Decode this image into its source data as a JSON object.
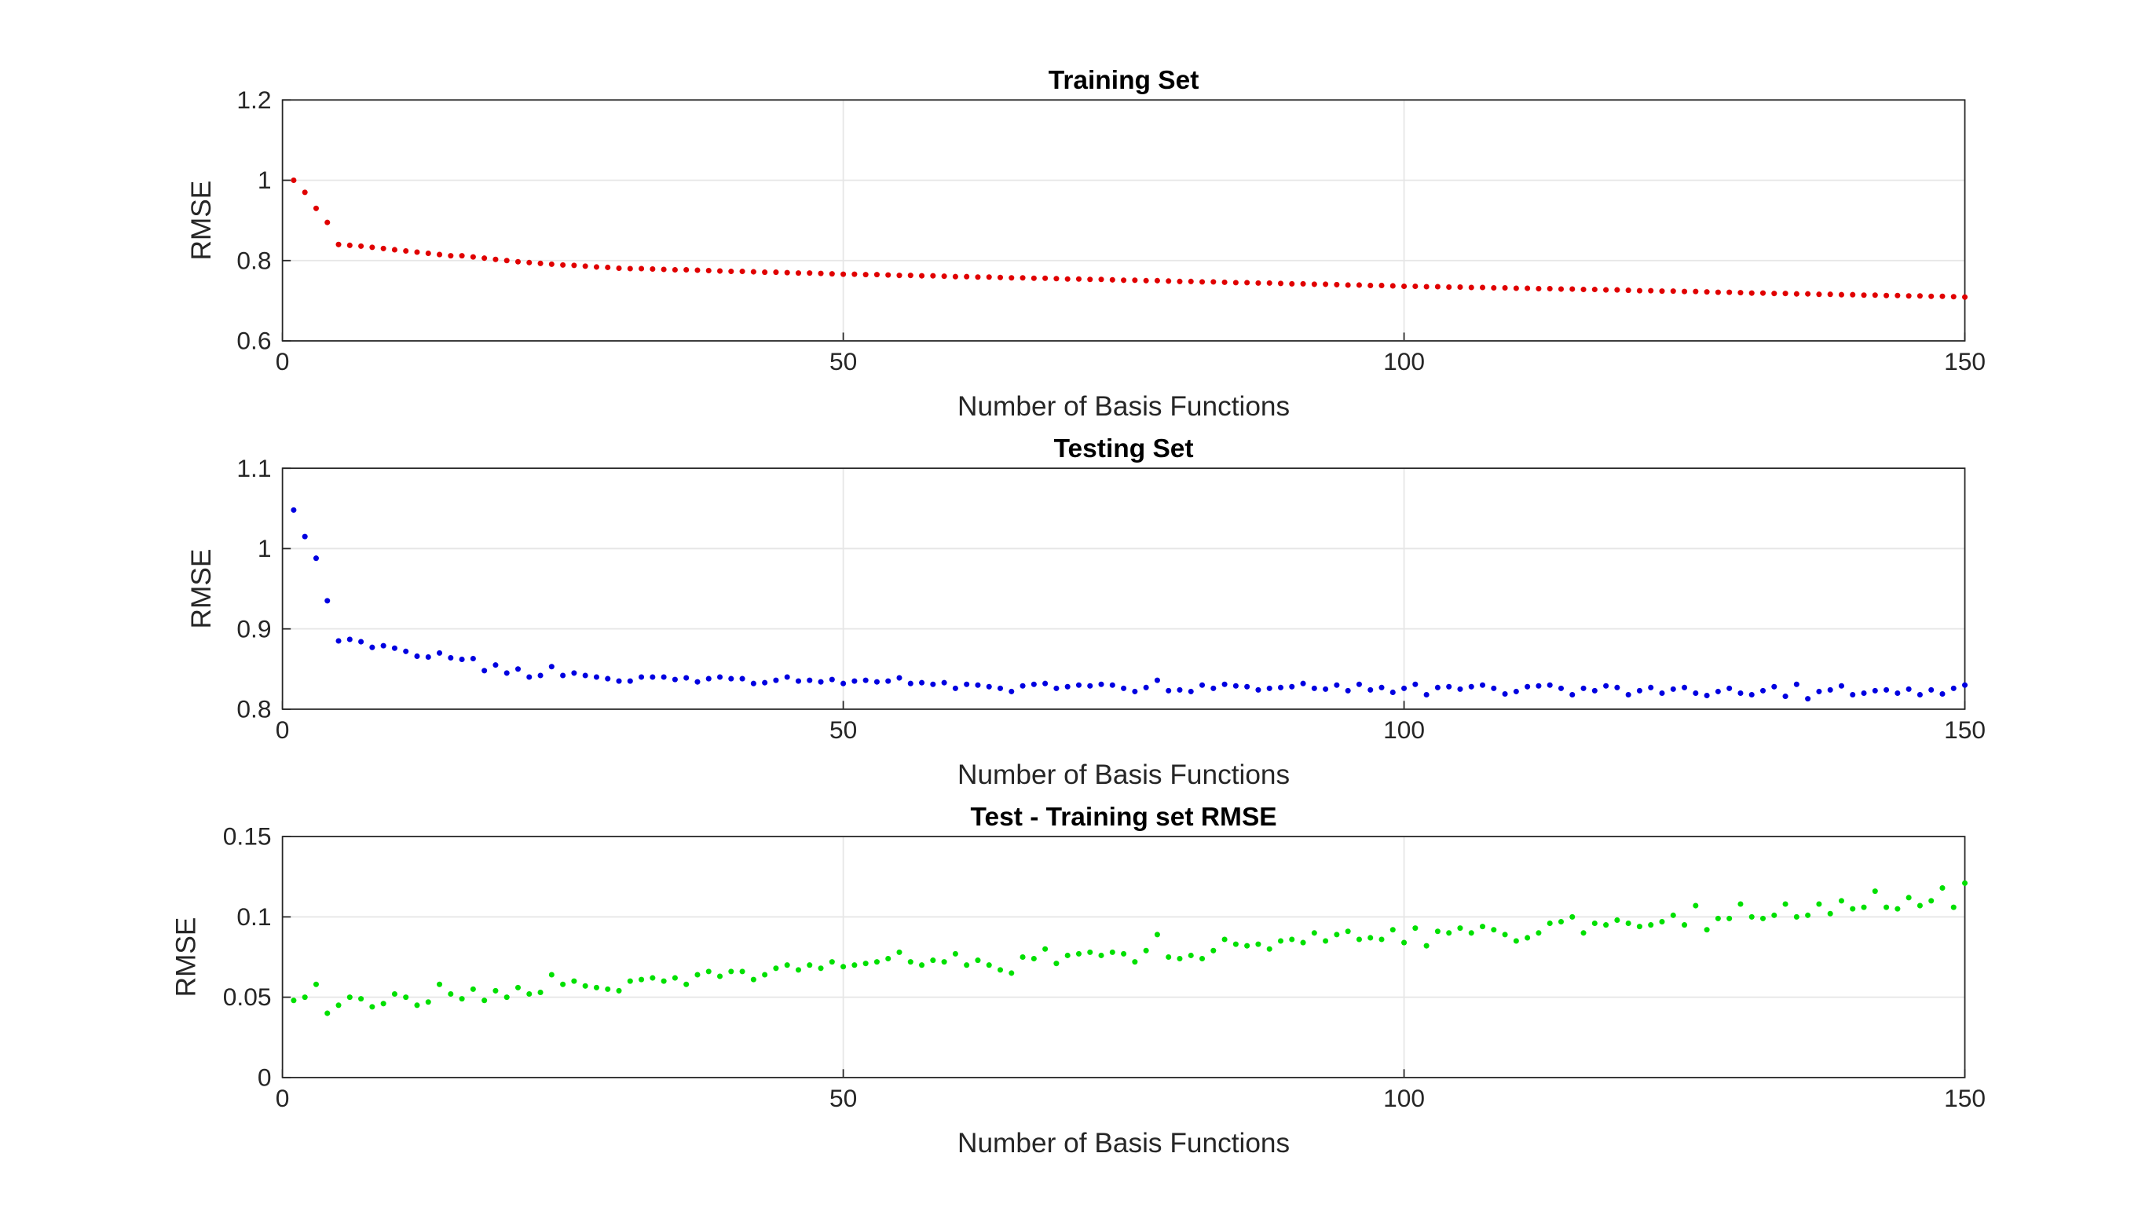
{
  "chart_data": [
    {
      "type": "scatter",
      "title": "Training Set",
      "xlabel": "Number of Basis Functions",
      "ylabel": "RMSE",
      "color": "#e00000",
      "grid": true,
      "xlim": [
        0,
        150
      ],
      "xticks": [
        0,
        50,
        100,
        150
      ],
      "ylim": [
        0.6,
        1.2
      ],
      "yticks": [
        0.6,
        0.8,
        1,
        1.2
      ],
      "x": [
        1,
        2,
        3,
        4,
        5,
        6,
        7,
        8,
        9,
        10,
        11,
        12,
        13,
        14,
        15,
        16,
        17,
        18,
        19,
        20,
        21,
        22,
        23,
        24,
        25,
        26,
        27,
        28,
        29,
        30,
        31,
        32,
        33,
        34,
        35,
        36,
        37,
        38,
        39,
        40,
        41,
        42,
        43,
        44,
        45,
        46,
        47,
        48,
        49,
        50,
        51,
        52,
        53,
        54,
        55,
        56,
        57,
        58,
        59,
        60,
        61,
        62,
        63,
        64,
        65,
        66,
        67,
        68,
        69,
        70,
        71,
        72,
        73,
        74,
        75,
        76,
        77,
        78,
        79,
        80,
        81,
        82,
        83,
        84,
        85,
        86,
        87,
        88,
        89,
        90,
        91,
        92,
        93,
        94,
        95,
        96,
        97,
        98,
        99,
        100,
        101,
        102,
        103,
        104,
        105,
        106,
        107,
        108,
        109,
        110,
        111,
        112,
        113,
        114,
        115,
        116,
        117,
        118,
        119,
        120,
        121,
        122,
        123,
        124,
        125,
        126,
        127,
        128,
        129,
        130,
        131,
        132,
        133,
        134,
        135,
        136,
        137,
        138,
        139,
        140,
        141,
        142,
        143,
        144,
        145,
        146,
        147,
        148,
        149,
        150
      ],
      "values": [
        1.0,
        0.97,
        0.93,
        0.895,
        0.84,
        0.838,
        0.836,
        0.833,
        0.83,
        0.827,
        0.824,
        0.821,
        0.818,
        0.815,
        0.812,
        0.812,
        0.809,
        0.806,
        0.803,
        0.8,
        0.797,
        0.795,
        0.793,
        0.791,
        0.789,
        0.788,
        0.786,
        0.784,
        0.783,
        0.781,
        0.78,
        0.78,
        0.779,
        0.778,
        0.777,
        0.777,
        0.776,
        0.775,
        0.774,
        0.773,
        0.773,
        0.772,
        0.771,
        0.771,
        0.77,
        0.769,
        0.769,
        0.768,
        0.767,
        0.766,
        0.766,
        0.765,
        0.765,
        0.764,
        0.763,
        0.763,
        0.762,
        0.762,
        0.761,
        0.76,
        0.76,
        0.759,
        0.759,
        0.758,
        0.757,
        0.757,
        0.756,
        0.756,
        0.755,
        0.754,
        0.754,
        0.753,
        0.753,
        0.752,
        0.751,
        0.751,
        0.75,
        0.75,
        0.749,
        0.748,
        0.748,
        0.747,
        0.747,
        0.746,
        0.745,
        0.745,
        0.744,
        0.744,
        0.743,
        0.742,
        0.742,
        0.741,
        0.741,
        0.74,
        0.739,
        0.739,
        0.738,
        0.738,
        0.737,
        0.736,
        0.736,
        0.735,
        0.735,
        0.734,
        0.734,
        0.733,
        0.733,
        0.732,
        0.732,
        0.731,
        0.731,
        0.73,
        0.73,
        0.729,
        0.729,
        0.728,
        0.728,
        0.727,
        0.727,
        0.726,
        0.725,
        0.725,
        0.724,
        0.724,
        0.723,
        0.723,
        0.722,
        0.721,
        0.721,
        0.72,
        0.719,
        0.719,
        0.718,
        0.718,
        0.717,
        0.717,
        0.716,
        0.716,
        0.715,
        0.715,
        0.714,
        0.714,
        0.713,
        0.713,
        0.712,
        0.712,
        0.711,
        0.711,
        0.71,
        0.709
      ]
    },
    {
      "type": "scatter",
      "title": "Testing Set",
      "xlabel": "Number of Basis Functions",
      "ylabel": "RMSE",
      "color": "#0000e0",
      "grid": true,
      "xlim": [
        0,
        150
      ],
      "xticks": [
        0,
        50,
        100,
        150
      ],
      "ylim": [
        0.8,
        1.1
      ],
      "yticks": [
        0.8,
        0.9,
        1,
        1.1
      ],
      "x": [
        1,
        2,
        3,
        4,
        5,
        6,
        7,
        8,
        9,
        10,
        11,
        12,
        13,
        14,
        15,
        16,
        17,
        18,
        19,
        20,
        21,
        22,
        23,
        24,
        25,
        26,
        27,
        28,
        29,
        30,
        31,
        32,
        33,
        34,
        35,
        36,
        37,
        38,
        39,
        40,
        41,
        42,
        43,
        44,
        45,
        46,
        47,
        48,
        49,
        50,
        51,
        52,
        53,
        54,
        55,
        56,
        57,
        58,
        59,
        60,
        61,
        62,
        63,
        64,
        65,
        66,
        67,
        68,
        69,
        70,
        71,
        72,
        73,
        74,
        75,
        76,
        77,
        78,
        79,
        80,
        81,
        82,
        83,
        84,
        85,
        86,
        87,
        88,
        89,
        90,
        91,
        92,
        93,
        94,
        95,
        96,
        97,
        98,
        99,
        100,
        101,
        102,
        103,
        104,
        105,
        106,
        107,
        108,
        109,
        110,
        111,
        112,
        113,
        114,
        115,
        116,
        117,
        118,
        119,
        120,
        121,
        122,
        123,
        124,
        125,
        126,
        127,
        128,
        129,
        130,
        131,
        132,
        133,
        134,
        135,
        136,
        137,
        138,
        139,
        140,
        141,
        142,
        143,
        144,
        145,
        146,
        147,
        148,
        149,
        150
      ],
      "values": [
        1.048,
        1.015,
        0.988,
        0.935,
        0.885,
        0.887,
        0.884,
        0.877,
        0.879,
        0.876,
        0.872,
        0.866,
        0.865,
        0.87,
        0.864,
        0.862,
        0.863,
        0.848,
        0.855,
        0.845,
        0.85,
        0.84,
        0.842,
        0.853,
        0.842,
        0.845,
        0.842,
        0.84,
        0.838,
        0.835,
        0.835,
        0.84,
        0.84,
        0.84,
        0.837,
        0.839,
        0.834,
        0.838,
        0.84,
        0.838,
        0.838,
        0.832,
        0.833,
        0.836,
        0.84,
        0.835,
        0.836,
        0.834,
        0.837,
        0.832,
        0.835,
        0.836,
        0.834,
        0.835,
        0.839,
        0.832,
        0.833,
        0.831,
        0.833,
        0.826,
        0.831,
        0.83,
        0.828,
        0.826,
        0.822,
        0.829,
        0.831,
        0.832,
        0.826,
        0.828,
        0.83,
        0.829,
        0.831,
        0.83,
        0.826,
        0.822,
        0.827,
        0.836,
        0.823,
        0.824,
        0.822,
        0.83,
        0.826,
        0.831,
        0.829,
        0.828,
        0.824,
        0.826,
        0.827,
        0.828,
        0.832,
        0.826,
        0.825,
        0.83,
        0.823,
        0.831,
        0.824,
        0.827,
        0.821,
        0.826,
        0.831,
        0.818,
        0.827,
        0.828,
        0.825,
        0.828,
        0.83,
        0.826,
        0.819,
        0.822,
        0.828,
        0.829,
        0.83,
        0.826,
        0.818,
        0.826,
        0.823,
        0.829,
        0.827,
        0.818,
        0.823,
        0.827,
        0.82,
        0.825,
        0.827,
        0.82,
        0.817,
        0.822,
        0.826,
        0.82,
        0.818,
        0.823,
        0.828,
        0.816,
        0.831,
        0.813,
        0.822,
        0.824,
        0.829,
        0.818,
        0.82,
        0.823,
        0.824,
        0.82,
        0.825,
        0.818,
        0.824,
        0.819,
        0.826,
        0.83
      ]
    },
    {
      "type": "scatter",
      "title": "Test - Training set RMSE",
      "xlabel": "Number of Basis Functions",
      "ylabel": "RMSE",
      "color": "#00e000",
      "grid": true,
      "xlim": [
        0,
        150
      ],
      "xticks": [
        0,
        50,
        100,
        150
      ],
      "ylim": [
        0,
        0.15
      ],
      "yticks": [
        0,
        0.05,
        0.1,
        0.15
      ],
      "x": [
        1,
        2,
        3,
        4,
        5,
        6,
        7,
        8,
        9,
        10,
        11,
        12,
        13,
        14,
        15,
        16,
        17,
        18,
        19,
        20,
        21,
        22,
        23,
        24,
        25,
        26,
        27,
        28,
        29,
        30,
        31,
        32,
        33,
        34,
        35,
        36,
        37,
        38,
        39,
        40,
        41,
        42,
        43,
        44,
        45,
        46,
        47,
        48,
        49,
        50,
        51,
        52,
        53,
        54,
        55,
        56,
        57,
        58,
        59,
        60,
        61,
        62,
        63,
        64,
        65,
        66,
        67,
        68,
        69,
        70,
        71,
        72,
        73,
        74,
        75,
        76,
        77,
        78,
        79,
        80,
        81,
        82,
        83,
        84,
        85,
        86,
        87,
        88,
        89,
        90,
        91,
        92,
        93,
        94,
        95,
        96,
        97,
        98,
        99,
        100,
        101,
        102,
        103,
        104,
        105,
        106,
        107,
        108,
        109,
        110,
        111,
        112,
        113,
        114,
        115,
        116,
        117,
        118,
        119,
        120,
        121,
        122,
        123,
        124,
        125,
        126,
        127,
        128,
        129,
        130,
        131,
        132,
        133,
        134,
        135,
        136,
        137,
        138,
        139,
        140,
        141,
        142,
        143,
        144,
        145,
        146,
        147,
        148,
        149,
        150
      ],
      "values": [
        0.048,
        0.05,
        0.058,
        0.04,
        0.045,
        0.05,
        0.049,
        0.044,
        0.046,
        0.052,
        0.05,
        0.045,
        0.047,
        0.058,
        0.052,
        0.049,
        0.055,
        0.048,
        0.054,
        0.05,
        0.056,
        0.052,
        0.053,
        0.064,
        0.058,
        0.06,
        0.057,
        0.056,
        0.055,
        0.054,
        0.06,
        0.061,
        0.062,
        0.06,
        0.062,
        0.058,
        0.064,
        0.066,
        0.063,
        0.066,
        0.066,
        0.061,
        0.064,
        0.068,
        0.07,
        0.067,
        0.07,
        0.068,
        0.072,
        0.069,
        0.07,
        0.071,
        0.072,
        0.074,
        0.078,
        0.072,
        0.07,
        0.073,
        0.072,
        0.077,
        0.07,
        0.073,
        0.07,
        0.067,
        0.065,
        0.075,
        0.074,
        0.08,
        0.071,
        0.076,
        0.077,
        0.078,
        0.076,
        0.078,
        0.077,
        0.072,
        0.079,
        0.089,
        0.075,
        0.074,
        0.076,
        0.074,
        0.079,
        0.086,
        0.083,
        0.082,
        0.083,
        0.08,
        0.085,
        0.086,
        0.084,
        0.09,
        0.085,
        0.089,
        0.091,
        0.086,
        0.087,
        0.086,
        0.092,
        0.084,
        0.093,
        0.082,
        0.091,
        0.09,
        0.093,
        0.09,
        0.094,
        0.092,
        0.089,
        0.085,
        0.087,
        0.09,
        0.096,
        0.097,
        0.1,
        0.09,
        0.096,
        0.095,
        0.098,
        0.096,
        0.094,
        0.095,
        0.097,
        0.101,
        0.095,
        0.107,
        0.092,
        0.099,
        0.099,
        0.108,
        0.1,
        0.099,
        0.101,
        0.108,
        0.1,
        0.101,
        0.108,
        0.102,
        0.11,
        0.105,
        0.106,
        0.116,
        0.106,
        0.105,
        0.112,
        0.107,
        0.11,
        0.118,
        0.106,
        0.121
      ]
    }
  ]
}
